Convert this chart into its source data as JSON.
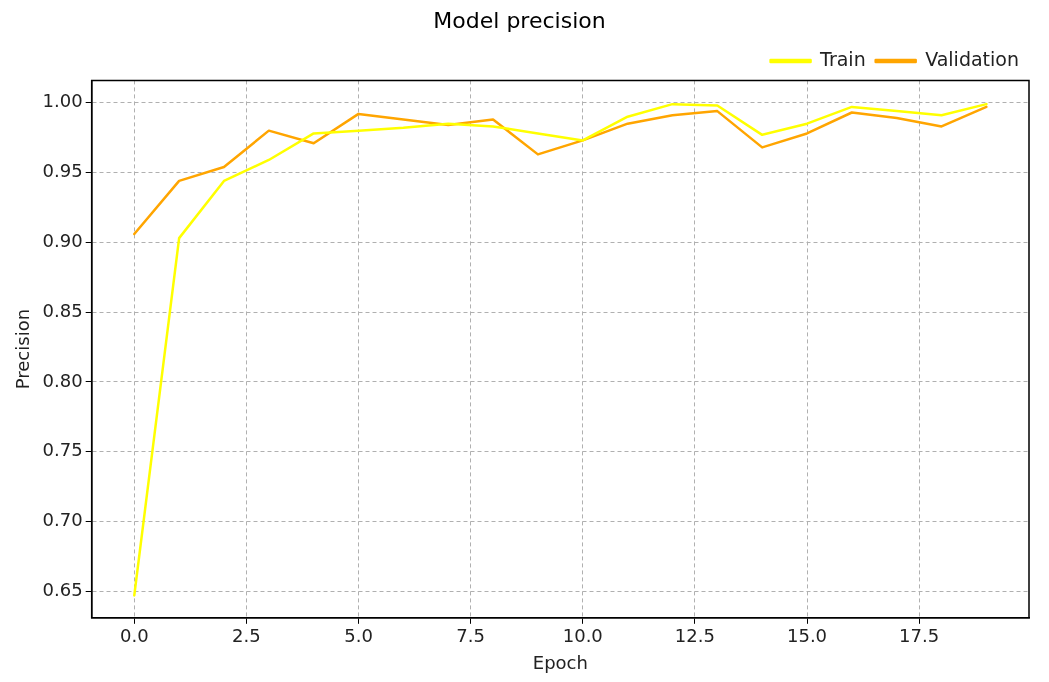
{
  "chart_data": {
    "type": "line",
    "title": "Model precision",
    "xlabel": "Epoch",
    "ylabel": "Precision",
    "x": [
      0,
      1,
      2,
      3,
      4,
      5,
      6,
      7,
      8,
      9,
      10,
      11,
      12,
      13,
      14,
      15,
      16,
      17,
      18,
      19
    ],
    "series": [
      {
        "name": "Train",
        "color": "#ffff00",
        "values": [
          0.647,
          0.903,
          0.944,
          0.959,
          0.978,
          0.98,
          0.982,
          0.985,
          0.983,
          0.978,
          0.973,
          0.99,
          0.999,
          0.998,
          0.977,
          0.985,
          0.997,
          0.994,
          0.991,
          0.999
        ]
      },
      {
        "name": "Validation",
        "color": "#ffa500",
        "values": [
          0.906,
          0.944,
          0.954,
          0.98,
          0.971,
          0.992,
          0.988,
          0.984,
          0.988,
          0.963,
          0.973,
          0.985,
          0.991,
          0.994,
          0.968,
          0.978,
          0.993,
          0.989,
          0.983,
          0.997
        ]
      }
    ],
    "xlim": [
      -0.95,
      19.95
    ],
    "xticks": [
      {
        "value": 0,
        "label": "0.0"
      },
      {
        "value": 2.5,
        "label": "2.5"
      },
      {
        "value": 5,
        "label": "5.0"
      },
      {
        "value": 7.5,
        "label": "7.5"
      },
      {
        "value": 10,
        "label": "10.0"
      },
      {
        "value": 12.5,
        "label": "12.5"
      },
      {
        "value": 15,
        "label": "15.0"
      },
      {
        "value": 17.5,
        "label": "17.5"
      }
    ],
    "ylim": [
      0.631,
      1.016
    ],
    "yticks": [
      {
        "value": 0.65,
        "label": "0.65"
      },
      {
        "value": 0.7,
        "label": "0.70"
      },
      {
        "value": 0.75,
        "label": "0.75"
      },
      {
        "value": 0.8,
        "label": "0.80"
      },
      {
        "value": 0.85,
        "label": "0.85"
      },
      {
        "value": 0.9,
        "label": "0.90"
      },
      {
        "value": 0.95,
        "label": "0.95"
      },
      {
        "value": 1,
        "label": "1.00"
      }
    ],
    "grid": true,
    "legend": "top right",
    "marker": "none",
    "line_style": "solid"
  }
}
